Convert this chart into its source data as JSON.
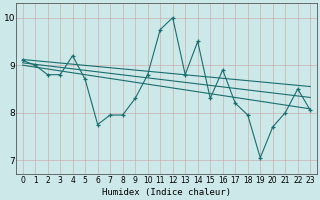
{
  "title": "",
  "xlabel": "Humidex (Indice chaleur)",
  "ylabel": "",
  "bg_color": "#cce8e8",
  "grid_color": "#aacccc",
  "line_color": "#1a6e6e",
  "xlim": [
    -0.5,
    23.5
  ],
  "ylim": [
    6.7,
    10.3
  ],
  "yticks": [
    7,
    8,
    9,
    10
  ],
  "xticks": [
    0,
    1,
    2,
    3,
    4,
    5,
    6,
    7,
    8,
    9,
    10,
    11,
    12,
    13,
    14,
    15,
    16,
    17,
    18,
    19,
    20,
    21,
    22,
    23
  ],
  "series1_x": [
    0,
    1,
    2,
    3,
    4,
    5,
    6,
    7,
    8,
    9,
    10,
    11,
    12,
    13,
    14,
    15,
    16,
    17,
    18,
    19,
    20,
    21,
    22,
    23
  ],
  "series1_y": [
    9.1,
    9.0,
    8.8,
    8.8,
    9.2,
    8.7,
    7.75,
    7.95,
    7.95,
    8.3,
    8.8,
    9.75,
    10.0,
    8.8,
    9.5,
    8.3,
    8.9,
    8.2,
    7.95,
    7.05,
    7.7,
    8.0,
    8.5,
    8.05
  ],
  "trend1_x": [
    0,
    23
  ],
  "trend1_y": [
    9.12,
    8.55
  ],
  "trend2_x": [
    0,
    23
  ],
  "trend2_y": [
    9.05,
    8.32
  ],
  "trend3_x": [
    0,
    23
  ],
  "trend3_y": [
    9.0,
    8.08
  ]
}
